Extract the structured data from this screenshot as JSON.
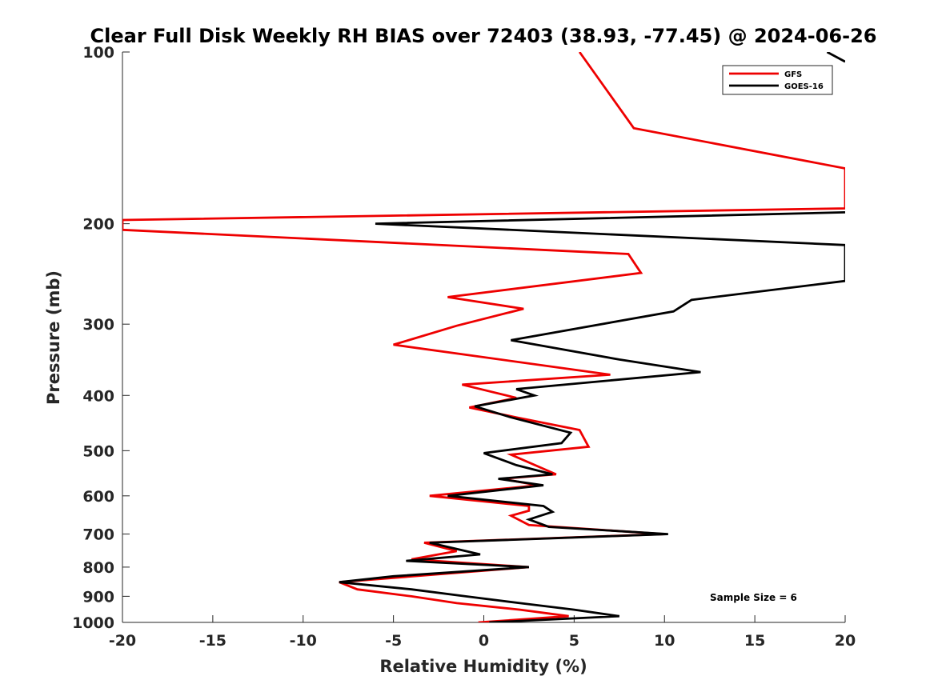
{
  "chart_data": {
    "type": "line",
    "title": "Clear Full Disk Weekly RH BIAS over 72403 (38.93, -77.45) @ 2024-06-26",
    "xlabel": "Relative Humidity (%)",
    "ylabel": "Pressure (mb)",
    "xlim": [
      -20,
      20
    ],
    "ylim": [
      100,
      1000
    ],
    "yscale": "log",
    "yreversed": true,
    "grid": false,
    "legend": "top-right",
    "xticks": [
      "-20",
      "-15",
      "-10",
      "-5",
      "0",
      "5",
      "10",
      "15",
      "20"
    ],
    "yticks": [
      "100",
      "200",
      "300",
      "400",
      "500",
      "600",
      "700",
      "800",
      "900",
      "1000"
    ],
    "annotation": "Sample Size = 6",
    "colors": {
      "GFS": "#ee0000",
      "GOES-16": "#000000"
    },
    "series": [
      {
        "name": "GFS",
        "points": [
          [
            -0.3,
            1000
          ],
          [
            4.7,
            975
          ],
          [
            2,
            950
          ],
          [
            -1.5,
            925
          ],
          [
            -4,
            900
          ],
          [
            -7,
            875
          ],
          [
            -8,
            850
          ],
          [
            2.5,
            800
          ],
          [
            -4,
            775
          ],
          [
            -1.5,
            750
          ],
          [
            -3.3,
            725
          ],
          [
            10,
            700
          ],
          [
            2.5,
            675
          ],
          [
            1.5,
            650
          ],
          [
            2.5,
            637
          ],
          [
            2.5,
            625
          ],
          [
            -3,
            600
          ],
          [
            3,
            575
          ],
          [
            1,
            560
          ],
          [
            4,
            550
          ],
          [
            1.5,
            508
          ],
          [
            5.8,
            492
          ],
          [
            5.3,
            460
          ],
          [
            1.8,
            437
          ],
          [
            -0.8,
            420
          ],
          [
            1.8,
            404
          ],
          [
            -1.2,
            383
          ],
          [
            7,
            368
          ],
          [
            -5,
            326
          ],
          [
            -1.5,
            302
          ],
          [
            2.2,
            282
          ],
          [
            -2,
            269
          ],
          [
            8.7,
            244
          ],
          [
            8,
            226
          ],
          [
            -20,
            205
          ],
          [
            -20,
            197
          ],
          [
            20,
            188
          ],
          [
            20,
            160
          ],
          [
            8.3,
            136
          ],
          [
            5.3,
            100
          ]
        ]
      },
      {
        "name": "GOES-16",
        "points": [
          [
            0.3,
            1000
          ],
          [
            7.5,
            975
          ],
          [
            5,
            950
          ],
          [
            2,
            925
          ],
          [
            -1,
            900
          ],
          [
            -4,
            875
          ],
          [
            -8,
            850
          ],
          [
            -5,
            830
          ],
          [
            2.5,
            800
          ],
          [
            -4.3,
            780
          ],
          [
            -0.2,
            760
          ],
          [
            -3,
            725
          ],
          [
            10.2,
            700
          ],
          [
            3.6,
            680
          ],
          [
            2.5,
            660
          ],
          [
            3.8,
            640
          ],
          [
            3.3,
            625
          ],
          [
            -2,
            600
          ],
          [
            3.3,
            575
          ],
          [
            0.8,
            560
          ],
          [
            3.8,
            550
          ],
          [
            1.8,
            530
          ],
          [
            0,
            505
          ],
          [
            4.3,
            485
          ],
          [
            4.8,
            465
          ],
          [
            1.5,
            437
          ],
          [
            -0.5,
            418
          ],
          [
            2.8,
            400
          ],
          [
            1.8,
            390
          ],
          [
            12,
            364
          ],
          [
            7.5,
            346
          ],
          [
            1.5,
            320
          ],
          [
            10.5,
            285
          ],
          [
            11.5,
            272
          ],
          [
            20,
            252
          ],
          [
            20,
            218
          ],
          [
            -6,
            200
          ],
          [
            20,
            191
          ]
        ]
      },
      {
        "name": "",
        "points": [
          [
            19,
            100
          ],
          [
            20,
            104
          ]
        ]
      }
    ]
  }
}
